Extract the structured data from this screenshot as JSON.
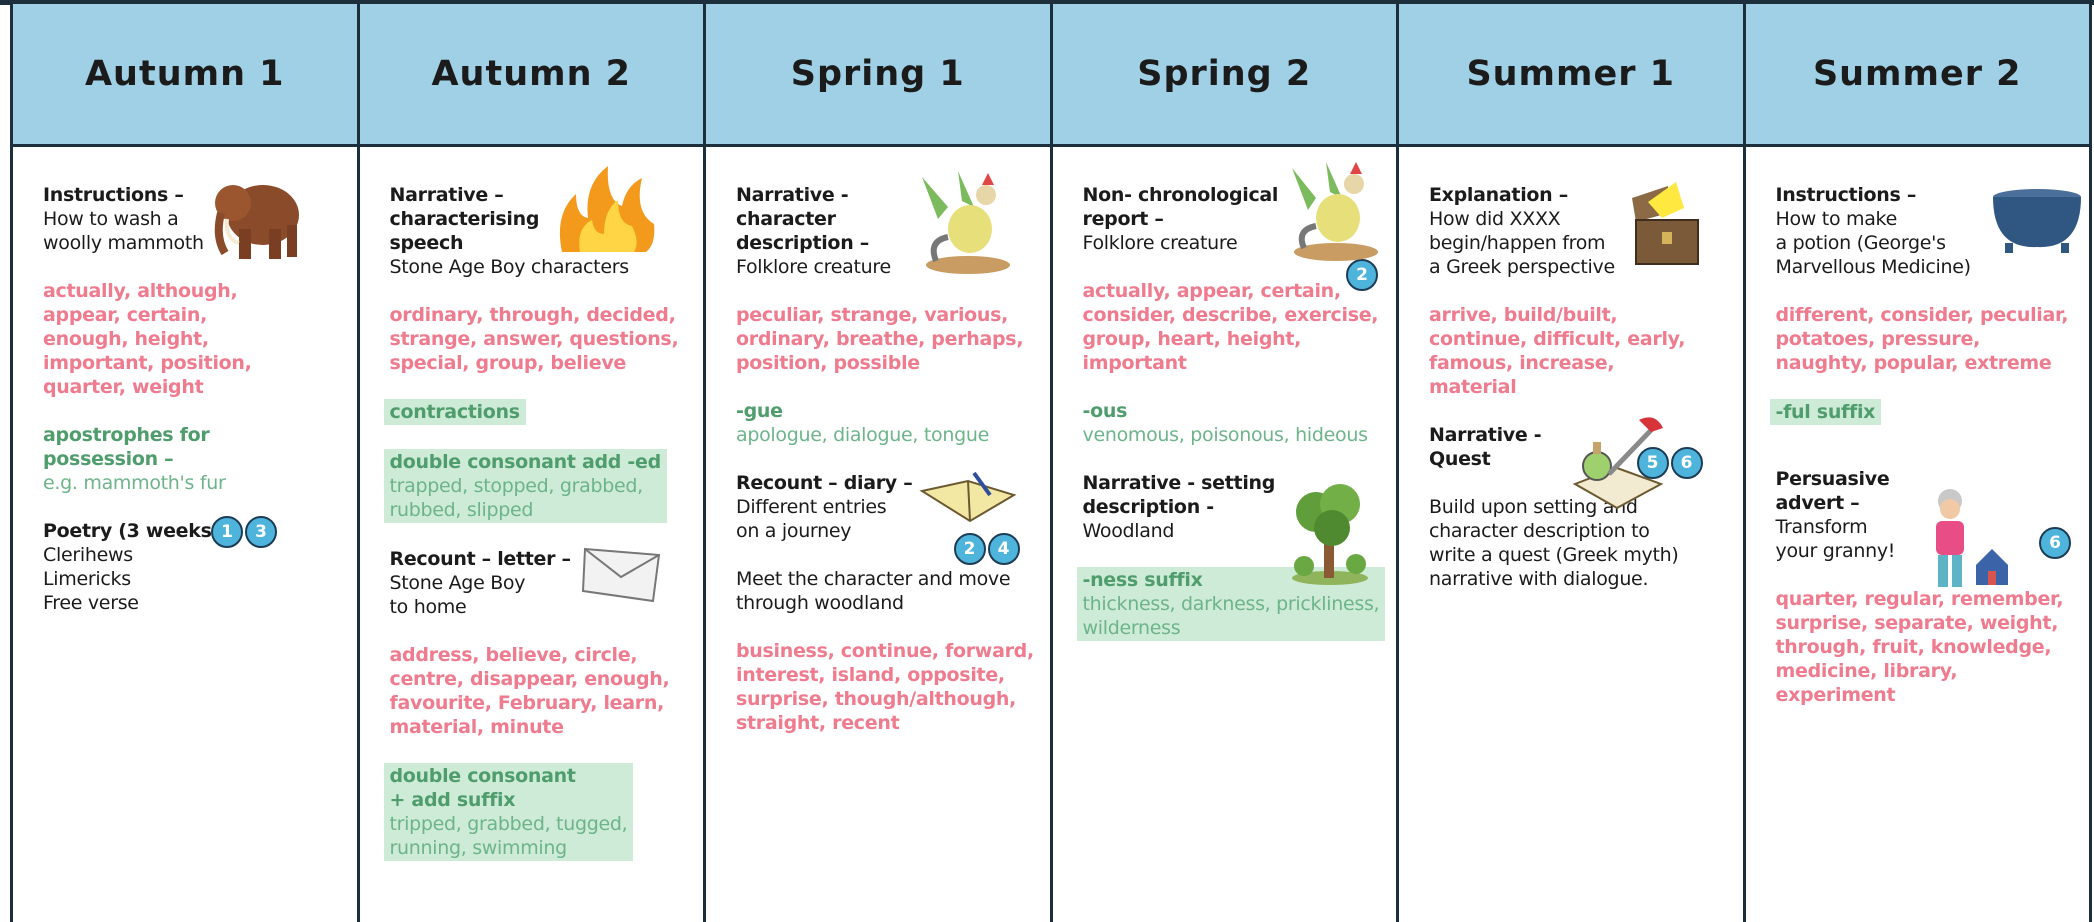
{
  "columns": [
    {
      "header": "Autumn 1",
      "sections": [
        {
          "title": [
            "Instructions –"
          ],
          "text": [
            "How to wash a",
            "woolly mammoth"
          ]
        },
        {
          "words": [
            "actually, although,",
            "appear, certain,",
            "enough, height,",
            "important, position,",
            "quarter, weight"
          ]
        },
        {
          "rule": [
            "apostrophes for",
            "possession –"
          ],
          "examples": [
            "e.g. mammoth's fur"
          ]
        },
        {
          "title": [
            "Poetry (3 weeks)"
          ],
          "badges": [
            "1",
            "3"
          ],
          "text": [
            "Clerihews",
            "Limericks",
            "Free verse"
          ]
        }
      ]
    },
    {
      "header": "Autumn 2",
      "sections": [
        {
          "title": [
            "Narrative –",
            "characterising",
            "speech"
          ],
          "text": [
            "Stone Age Boy characters"
          ]
        },
        {
          "words": [
            "ordinary, through, decided,",
            "strange, answer, questions,",
            "special, group, believe"
          ]
        },
        {
          "rule": [
            "contractions"
          ],
          "highlight": true
        },
        {
          "rule": [
            "double consonant add -ed"
          ],
          "examples": [
            "trapped, stopped, grabbed,",
            "rubbed, slipped"
          ],
          "highlight": true
        },
        {
          "title": [
            "Recount – letter –"
          ],
          "text": [
            "Stone Age Boy",
            "to home"
          ]
        },
        {
          "words": [
            "address, believe, circle,",
            "centre, disappear, enough,",
            "favourite, February, learn,",
            "material, minute"
          ]
        },
        {
          "rule": [
            "double consonant",
            "+ add suffix"
          ],
          "examples": [
            "tripped, grabbed, tugged,",
            "running, swimming"
          ],
          "highlight": true
        }
      ]
    },
    {
      "header": "Spring 1",
      "sections": [
        {
          "title": [
            "Narrative -",
            "character",
            "description –"
          ],
          "text": [
            "Folklore creature"
          ]
        },
        {
          "words": [
            "peculiar, strange, various,",
            "ordinary, breathe, perhaps,",
            "position, possible"
          ]
        },
        {
          "rule": [
            "-gue"
          ],
          "examples": [
            "apologue, dialogue, tongue"
          ]
        },
        {
          "title": [
            "Recount – diary –"
          ],
          "text": [
            "Different entries",
            "on a journey"
          ],
          "badges": [
            "2",
            "4"
          ]
        },
        {
          "text": [
            "Meet the character and move",
            "through woodland"
          ]
        },
        {
          "words": [
            "business, continue, forward,",
            "interest, island, opposite,",
            "surprise, though/although,",
            "straight, recent"
          ]
        }
      ]
    },
    {
      "header": "Spring 2",
      "sections": [
        {
          "title": [
            "Non- chronological",
            "report –"
          ],
          "text": [
            "Folklore creature"
          ],
          "badges": [
            "2"
          ]
        },
        {
          "words": [
            "actually, appear, certain,",
            "consider, describe, exercise,",
            "group, heart, height,",
            "important"
          ]
        },
        {
          "rule": [
            "-ous"
          ],
          "examples": [
            "venomous, poisonous, hideous"
          ]
        },
        {
          "title": [
            "Narrative - setting",
            "description -"
          ],
          "text": [
            "Woodland"
          ]
        },
        {
          "rule": [
            "-ness suffix"
          ],
          "examples": [
            "thickness, darkness, prickliness,",
            "wilderness"
          ],
          "highlight": true
        }
      ]
    },
    {
      "header": "Summer 1",
      "sections": [
        {
          "title": [
            "Explanation –"
          ],
          "text": [
            "How did XXXX",
            "begin/happen from",
            "a Greek perspective"
          ]
        },
        {
          "words": [
            "arrive, build/built,",
            "continue, difficult, early,",
            "famous, increase,",
            "material"
          ]
        },
        {
          "title": [
            "Narrative -",
            "Quest"
          ],
          "badges": [
            "5",
            "6"
          ]
        },
        {
          "text": [
            "Build upon setting and",
            "character description to",
            "write a quest (Greek myth)",
            "narrative with dialogue."
          ]
        }
      ]
    },
    {
      "header": "Summer 2",
      "sections": [
        {
          "title": [
            "Instructions –"
          ],
          "text": [
            "How to make",
            "a potion (George's",
            "Marvellous Medicine)"
          ]
        },
        {
          "words": [
            "different, consider, peculiar,",
            "potatoes, pressure,",
            "naughty, popular, extreme"
          ]
        },
        {
          "rule": [
            "-ful suffix"
          ],
          "highlight": true
        },
        {
          "title": [
            "Persuasive",
            "advert –"
          ],
          "text": [
            "Transform",
            "your granny!"
          ],
          "badges": [
            "6"
          ]
        },
        {
          "words": [
            "quarter, regular, remember,",
            "surprise, separate, weight,",
            "through, fruit, knowledge,",
            "medicine, library,",
            "experiment"
          ]
        }
      ]
    }
  ]
}
